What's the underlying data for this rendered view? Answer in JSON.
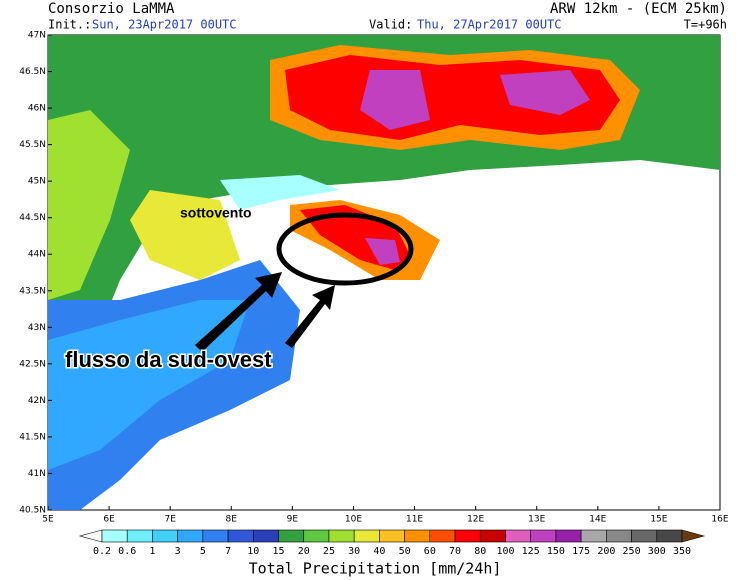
{
  "header": {
    "source": "Consorzio LaMMA",
    "init_label": "Init.:",
    "init_value": "Sun, 23Apr2017 00UTC",
    "valid_label": "Valid:",
    "valid_value": "Thu, 27Apr2017 00UTC",
    "model": "ARW 12km - (ECM 25km)",
    "lead": "T=+96h"
  },
  "map": {
    "latitudes": [
      "47N",
      "46.5N",
      "46N",
      "45.5N",
      "45N",
      "44.5N",
      "44N",
      "43.5N",
      "43N",
      "42.5N",
      "42N",
      "41.5N",
      "41N",
      "40.5N"
    ],
    "longitudes": [
      "5E",
      "6E",
      "7E",
      "8E",
      "9E",
      "10E",
      "11E",
      "12E",
      "13E",
      "14E",
      "15E",
      "16E"
    ],
    "annotations": {
      "lee": "sottovento",
      "flow": "flusso da sud-ovest"
    }
  },
  "colorbar": {
    "title": "Total Precipitation [mm/24h]",
    "labels": [
      0.2,
      0.6,
      1,
      3,
      5,
      7,
      10,
      15,
      20,
      25,
      30,
      40,
      50,
      60,
      70,
      80,
      100,
      125,
      150,
      175,
      200,
      250,
      300,
      350
    ],
    "colors": [
      "#ffffff",
      "#a8ffff",
      "#70f0ff",
      "#40d0ff",
      "#30a8ff",
      "#3080f0",
      "#3058d8",
      "#2a40b8",
      "#30a040",
      "#60c840",
      "#a0e030",
      "#e8e838",
      "#ffc020",
      "#ff9000",
      "#ff5000",
      "#ff0000",
      "#c80000",
      "#e060c0",
      "#c040c0",
      "#9820a8",
      "#a8a8a8",
      "#888888",
      "#686868",
      "#484848",
      "#6a3a10"
    ]
  }
}
